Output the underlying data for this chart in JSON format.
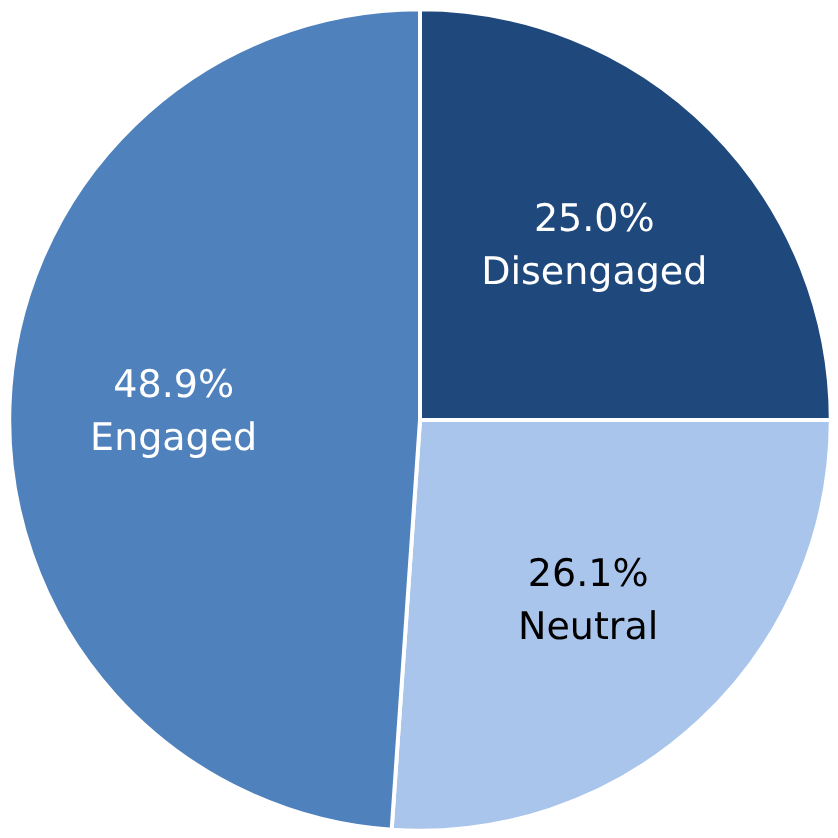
{
  "chart_data": {
    "type": "pie",
    "categories": [
      "Disengaged",
      "Neutral",
      "Engaged"
    ],
    "values": [
      25.0,
      26.1,
      48.9
    ],
    "colors": [
      "#1f497d",
      "#a9c5eb",
      "#4f81bd"
    ],
    "value_labels": [
      "25.0%",
      "26.1%",
      "48.9%"
    ]
  }
}
